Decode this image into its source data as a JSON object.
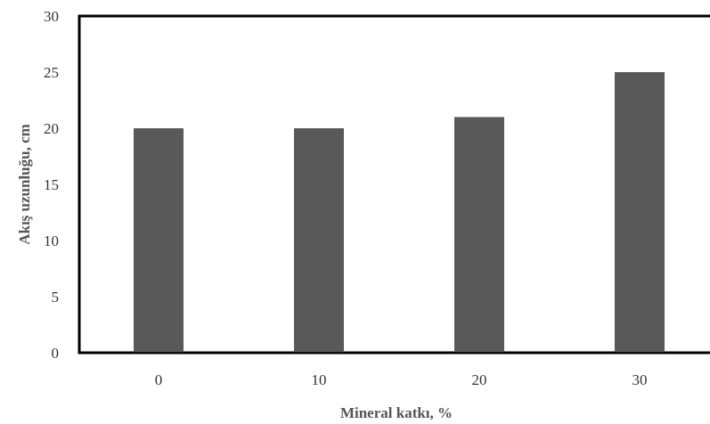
{
  "chart_data": {
    "type": "bar",
    "title": "",
    "xlabel": "Mineral katkı, %",
    "ylabel": "Akış uzunluğu,  cm",
    "categories": [
      "0",
      "10",
      "20",
      "30"
    ],
    "values": [
      20,
      20,
      21,
      25
    ],
    "ylim": [
      0,
      30
    ],
    "yticks": [
      "0",
      "5",
      "10",
      "15",
      "20",
      "25",
      "30"
    ],
    "grid": false,
    "legend": "none",
    "bar_color": "#595959"
  }
}
